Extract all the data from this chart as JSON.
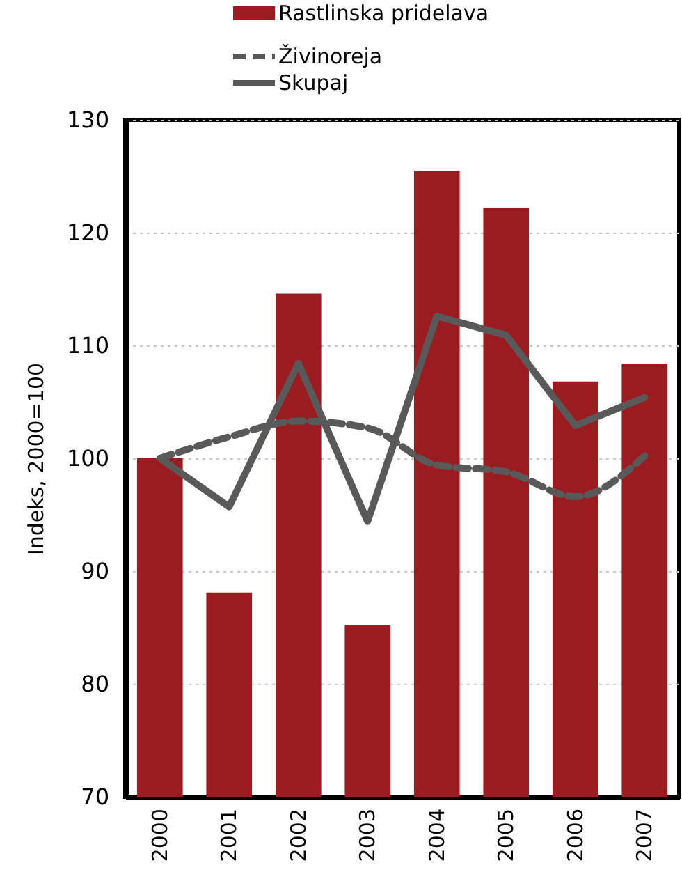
{
  "chart_data": {
    "type": "bar",
    "ylabel": "Indeks, 2000=100",
    "categories": [
      "2000",
      "2001",
      "2002",
      "2003",
      "2004",
      "2005",
      "2006",
      "2007"
    ],
    "series": [
      {
        "name": "Rastlinska pridelava",
        "color": "#9b1c20",
        "values": [
          100,
          88.1,
          114.6,
          85.2,
          125.5,
          122.2,
          106.8,
          108.4
        ]
      },
      {
        "name": "Živinoreja",
        "type": "line",
        "line_style": "dashed",
        "color": "#595959",
        "values": [
          100,
          101.9,
          103.3,
          102.7,
          99.4,
          98.8,
          96.6,
          100.2
        ]
      },
      {
        "name": "Skupaj",
        "type": "line",
        "line_style": "solid",
        "color": "#595959",
        "values": [
          100,
          95.7,
          108.4,
          94.4,
          112.6,
          110.9,
          102.9,
          105.4
        ]
      }
    ],
    "ylim": [
      70,
      130
    ],
    "yticks": [
      70,
      80,
      90,
      100,
      110,
      120,
      130
    ],
    "grid": "y",
    "legend": "top",
    "marker": "none"
  }
}
